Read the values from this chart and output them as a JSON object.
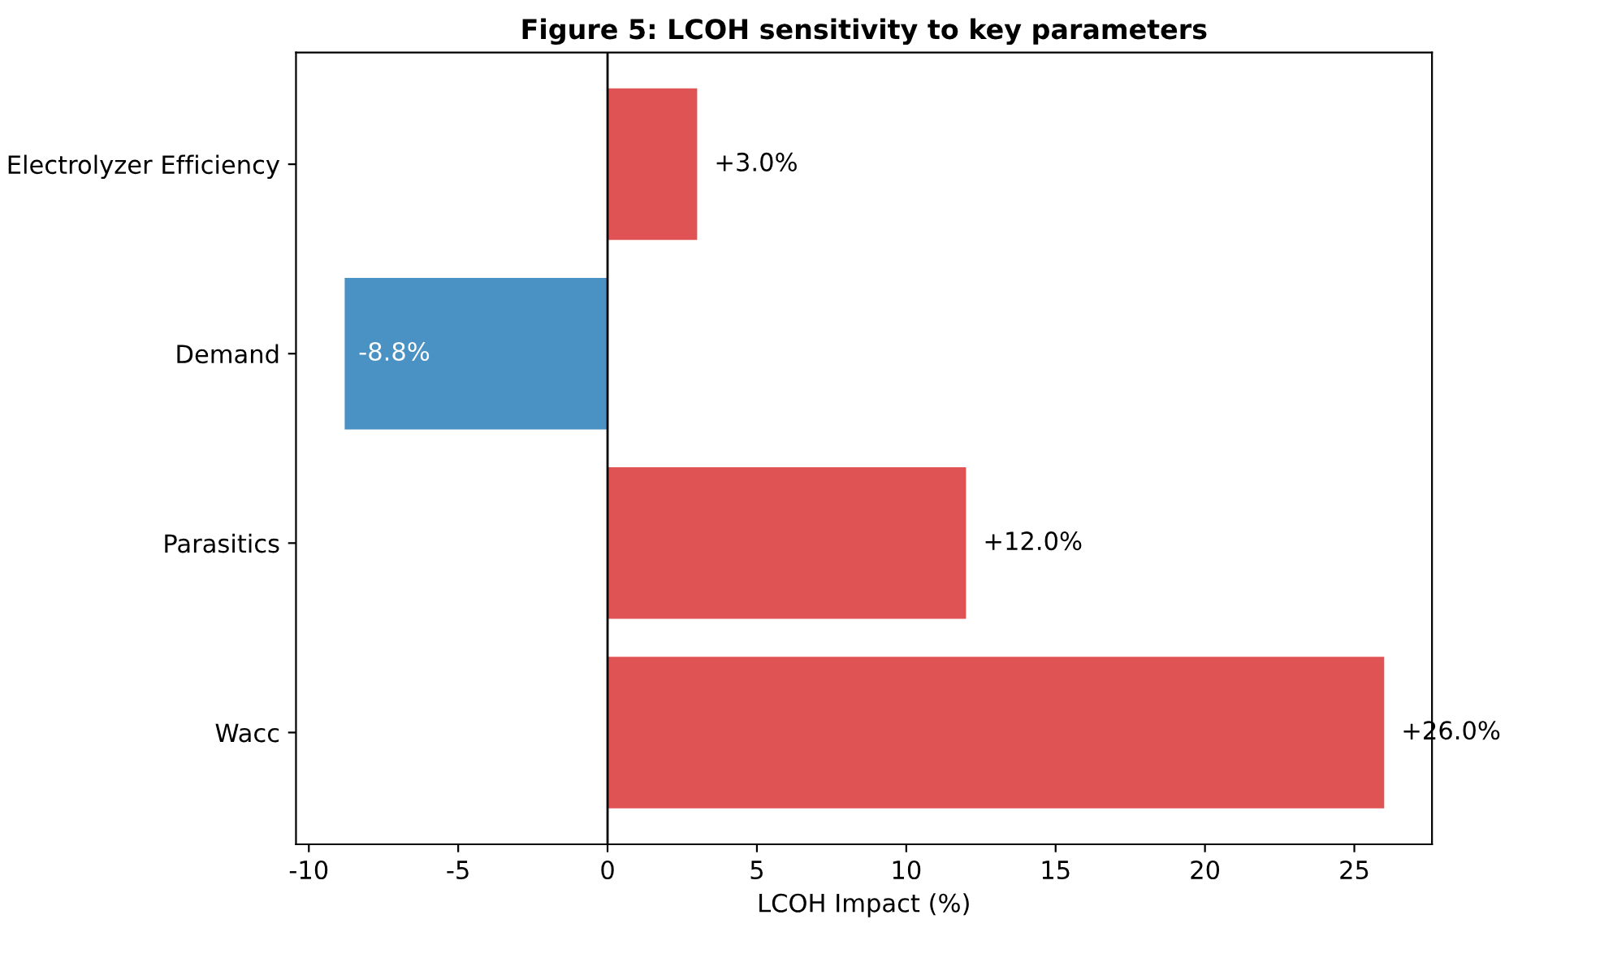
{
  "chart_data": {
    "type": "bar",
    "orientation": "horizontal",
    "title": "Figure 5: LCOH sensitivity to key parameters",
    "xlabel": "LCOH Impact (%)",
    "categories": [
      "Electrolyzer Efficiency",
      "Demand",
      "Parasitics",
      "Wacc"
    ],
    "values": [
      3.0,
      -8.8,
      12.0,
      26.0
    ],
    "colors": [
      "#e05355",
      "#4a91c4",
      "#e05355",
      "#e05355"
    ],
    "value_labels": [
      "+3.0%",
      "-8.8%",
      "+12.0%",
      "+26.0%"
    ],
    "xlim": [
      -10.43,
      27.6
    ],
    "xticks": [
      -10,
      -5,
      0,
      5,
      10,
      15,
      20,
      25
    ],
    "ref_lines": [
      {
        "axis": "x",
        "value": 0,
        "color": "#000000"
      }
    ],
    "grid": false,
    "legend": false
  }
}
